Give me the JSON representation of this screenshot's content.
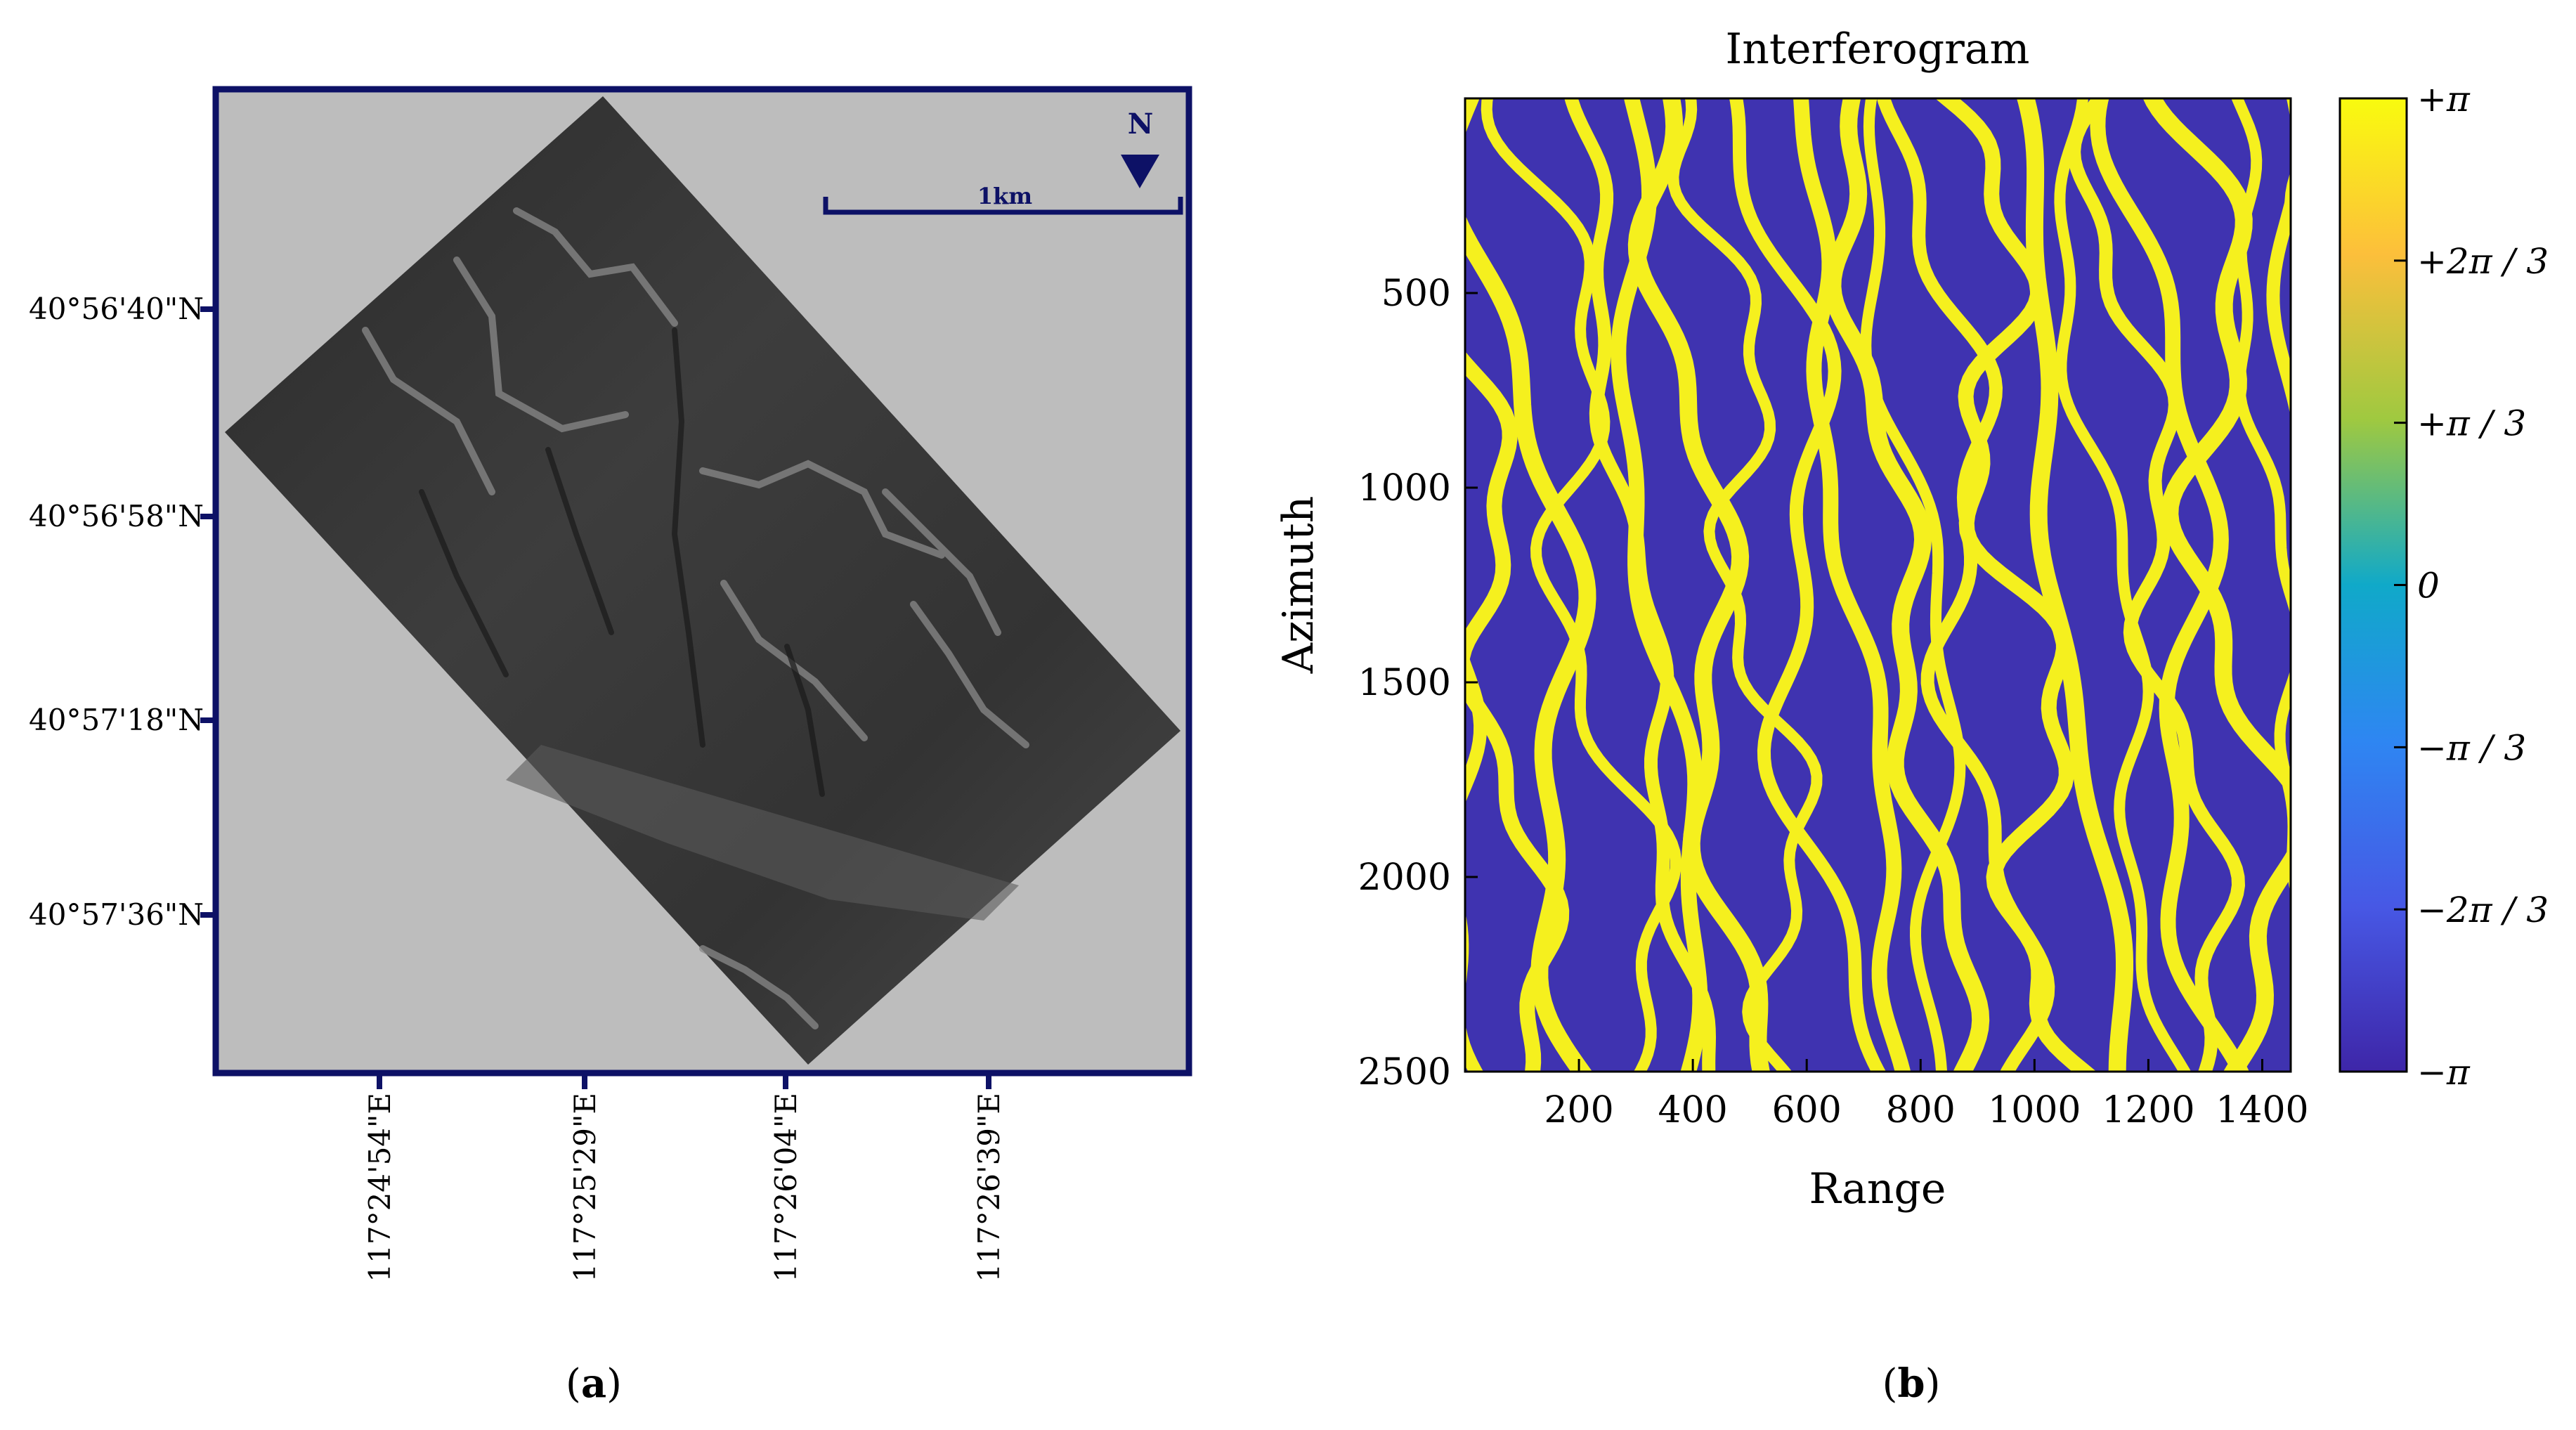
{
  "panel_a": {
    "caption_open": "(",
    "caption_letter": "a",
    "caption_close": ")",
    "scale_bar_label": "1km",
    "north_label": "N",
    "lat_ticks": [
      "40°56'40\"N",
      "40°56'58\"N",
      "40°57'18\"N",
      "40°57'36\"N"
    ],
    "lon_ticks": [
      "117°24'54\"E",
      "117°25'29\"E",
      "117°26'04\"E",
      "117°26'39\"E"
    ],
    "colors": {
      "frame": "#0d1166",
      "background": "#bdbdbd"
    }
  },
  "panel_b": {
    "caption_open": "(",
    "caption_letter": "b",
    "caption_close": ")",
    "colors": {
      "fringe_low": "#3f33b0",
      "fringe_high": "#f5f01e"
    }
  },
  "chart_data": {
    "type": "heatmap",
    "title": "Interferogram",
    "xlabel": "Range",
    "ylabel": "Azimuth",
    "xlim": [
      0,
      1450
    ],
    "ylim": [
      2500,
      0
    ],
    "xticks": [
      200,
      400,
      600,
      800,
      1000,
      1200,
      1400
    ],
    "yticks": [
      500,
      1000,
      1500,
      2000,
      2500
    ],
    "colorbar": {
      "range": [
        "-π",
        "+π"
      ],
      "ticks": [
        "+π",
        "+2π / 3",
        "+π / 3",
        "0",
        "−π / 3",
        "−2π / 3",
        "−π"
      ],
      "colors": [
        "#f9fb0e",
        "#fcbf3b",
        "#42bd89",
        "#10a9c9",
        "#2e86f2",
        "#4758e5",
        "#3e26a8"
      ]
    },
    "grid": false
  }
}
